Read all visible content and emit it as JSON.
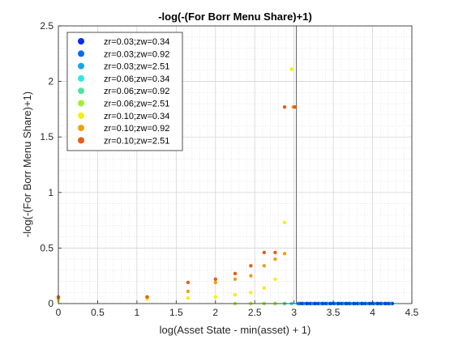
{
  "chart_data": {
    "type": "scatter",
    "title": "-log(-(For Borr Menu Share)+1)",
    "xlabel": "log(Asset State - min(asset) + 1)",
    "ylabel": "-log(-(For Borr Menu Share)+1)",
    "xlim": [
      0,
      4.5
    ],
    "ylim": [
      0,
      2.5
    ],
    "xticks": [
      "0",
      "0.5",
      "1",
      "1.5",
      "2",
      "2.5",
      "3",
      "3.5",
      "4",
      "4.5"
    ],
    "yticks": [
      "0",
      "0.5",
      "1",
      "1.5",
      "2",
      "2.5"
    ],
    "grid": true,
    "minor_grid": true,
    "legend_position": "top-left",
    "reference_line_x": 3.03,
    "series": [
      {
        "name": "zr=0.03;zw=0.34",
        "color": "#0a2cf0",
        "x": [
          3.06,
          3.11,
          3.16,
          3.21,
          3.26,
          3.31,
          3.36,
          3.41,
          3.46,
          3.51,
          3.56,
          3.61,
          3.66,
          3.71,
          3.76,
          3.81,
          3.86,
          3.91,
          3.96,
          4.01,
          4.06,
          4.11,
          4.16,
          4.21,
          4.25
        ],
        "y": [
          0,
          0,
          0,
          0,
          0,
          0,
          0,
          0,
          0,
          0,
          0,
          0,
          0,
          0,
          0,
          0,
          0,
          0,
          0,
          0,
          0,
          0,
          0,
          0,
          0
        ]
      },
      {
        "name": "zr=0.03;zw=0.92",
        "color": "#0a6bf0",
        "x": [
          3.08,
          3.18,
          3.28,
          3.38,
          3.48,
          3.58,
          3.68,
          3.78,
          3.88,
          3.98,
          4.08,
          4.18
        ],
        "y": [
          0,
          0,
          0,
          0,
          0,
          0,
          0,
          0,
          0,
          0,
          0,
          0
        ]
      },
      {
        "name": "zr=0.03;zw=2.51",
        "color": "#12a8e8",
        "x": [
          3.05,
          3.13,
          3.23,
          3.33,
          3.43,
          3.53,
          3.63,
          3.73,
          3.83,
          3.93,
          4.03,
          4.13,
          4.23
        ],
        "y": [
          0,
          0,
          0,
          0,
          0,
          0,
          0,
          0,
          0,
          0,
          0,
          0,
          0
        ]
      },
      {
        "name": "zr=0.06;zw=0.34",
        "color": "#2ee8e8",
        "x": [
          2.62,
          2.76,
          2.88,
          2.97
        ],
        "y": [
          0,
          0,
          0,
          0
        ]
      },
      {
        "name": "zr=0.06;zw=0.92",
        "color": "#4ee69a",
        "x": [
          2.45,
          2.62,
          2.76,
          2.88
        ],
        "y": [
          0,
          0,
          0,
          0
        ]
      },
      {
        "name": "zr=0.06;zw=2.51",
        "color": "#a0ee3c",
        "x": [
          2.25,
          2.45,
          2.62,
          2.76
        ],
        "y": [
          0,
          0,
          0,
          0
        ]
      },
      {
        "name": "zr=0.10;zw=0.34",
        "color": "#f5f00c",
        "x": [
          0,
          1.13,
          1.65,
          2.0,
          2.25,
          2.45,
          2.62,
          2.76,
          2.88,
          2.97
        ],
        "y": [
          0.03,
          0.04,
          0.05,
          0.06,
          0.08,
          0.1,
          0.14,
          0.22,
          0.73,
          2.11
        ]
      },
      {
        "name": "zr=0.10;zw=0.92",
        "color": "#f0a010",
        "x": [
          0,
          1.13,
          1.65,
          2.0,
          2.25,
          2.45,
          2.62,
          2.76,
          2.88,
          2.99
        ],
        "y": [
          0.05,
          0.06,
          0.11,
          0.19,
          0.22,
          0.25,
          0.34,
          0.4,
          0.45,
          1.77
        ]
      },
      {
        "name": "zr=0.10;zw=2.51",
        "color": "#ea5a1a",
        "x": [
          0,
          1.13,
          1.65,
          2.0,
          2.25,
          2.45,
          2.62,
          2.76,
          2.88,
          3.01
        ],
        "y": [
          0.06,
          0.06,
          0.19,
          0.22,
          0.27,
          0.34,
          0.46,
          0.46,
          1.77,
          1.77
        ]
      }
    ]
  }
}
